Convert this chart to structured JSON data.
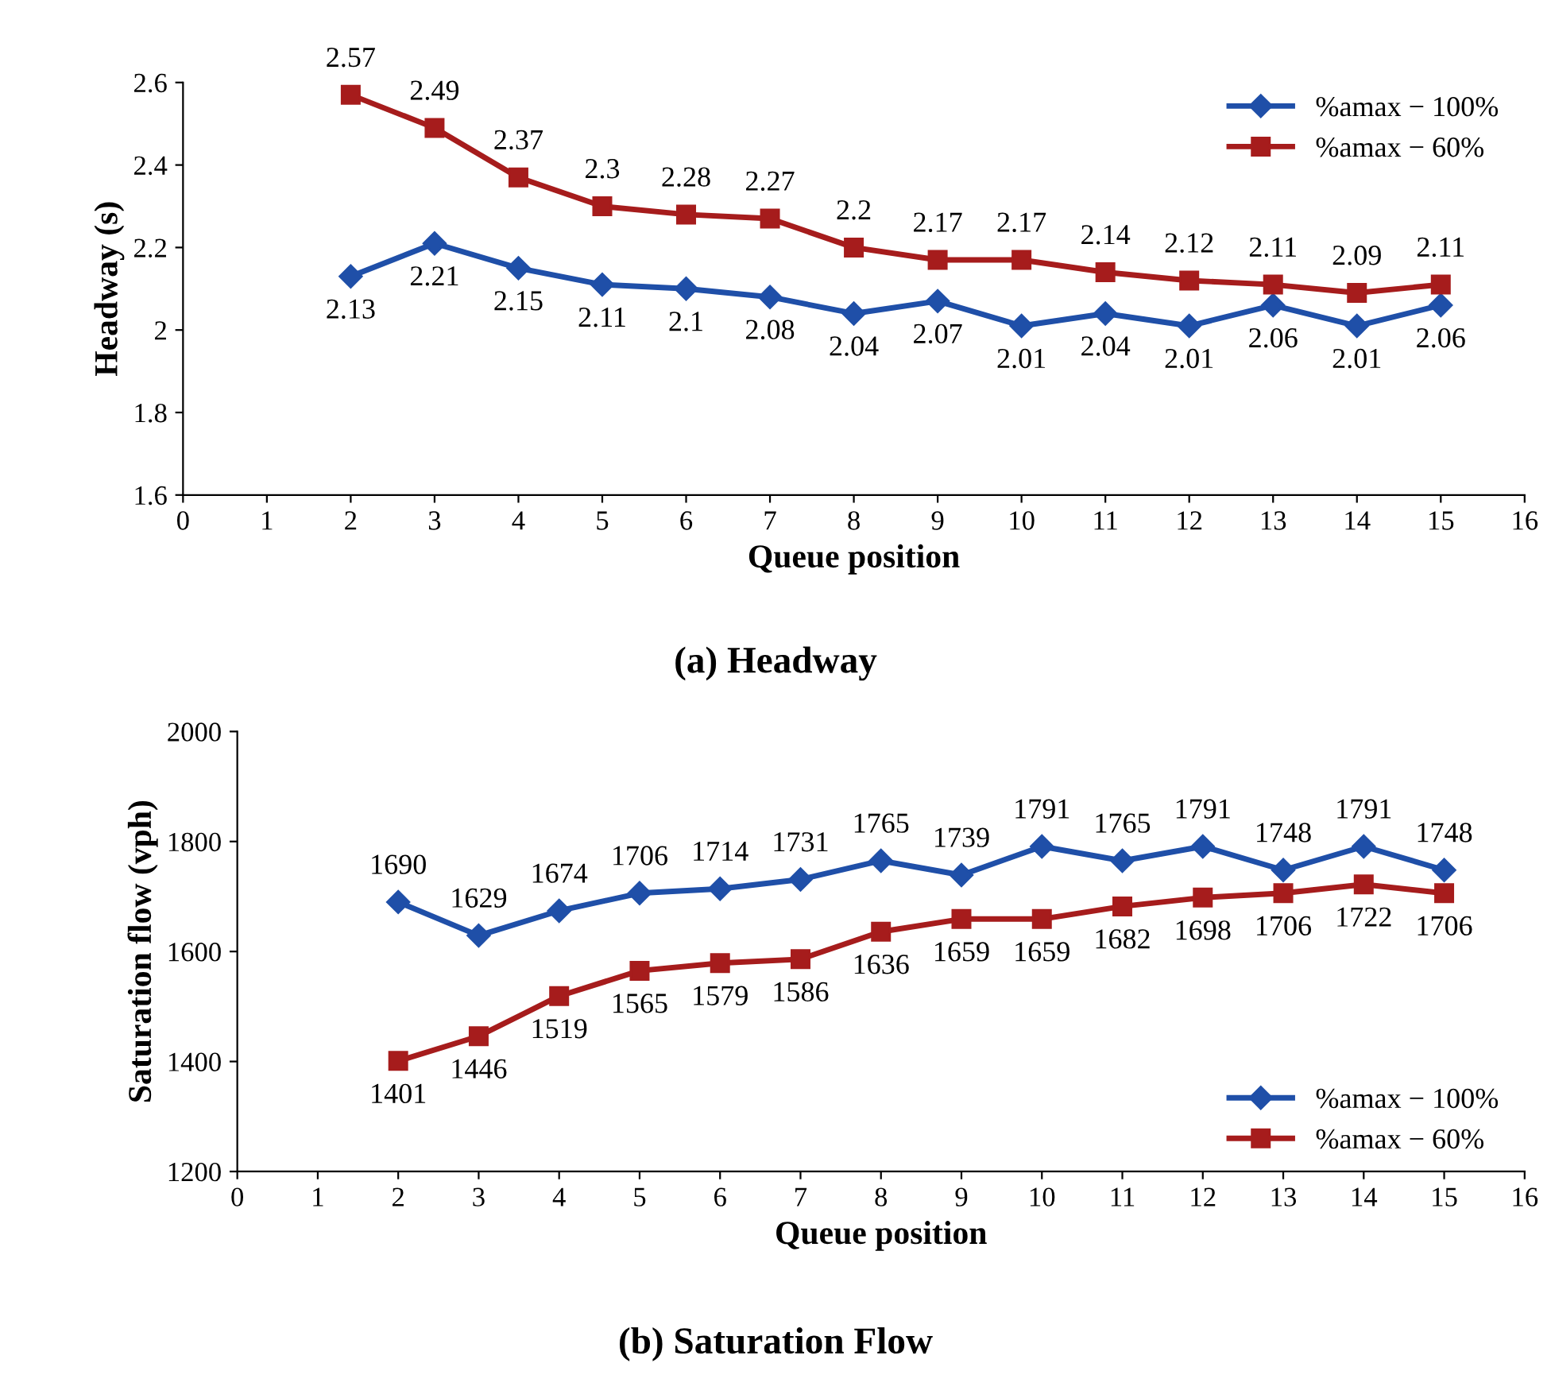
{
  "chart_data": [
    {
      "type": "line",
      "xlabel": "Queue position",
      "ylabel": "Headway (s)",
      "annotations": [
        "(a) Headway"
      ],
      "xlim": [
        0,
        16
      ],
      "xticks": [
        0,
        1,
        2,
        3,
        4,
        5,
        6,
        7,
        8,
        9,
        10,
        11,
        12,
        13,
        14,
        15,
        16
      ],
      "ylim": [
        1.6,
        2.6
      ],
      "yticks": [
        {
          "value": 1.6,
          "label": "1.6"
        },
        {
          "value": 1.8,
          "label": "1.8"
        },
        {
          "value": 2,
          "label": "2"
        },
        {
          "value": 2.2,
          "label": "2.2"
        },
        {
          "value": 2.4,
          "label": "2.4"
        },
        {
          "value": 2.6,
          "label": "2.6"
        }
      ],
      "x": [
        2,
        3,
        4,
        5,
        6,
        7,
        8,
        9,
        10,
        11,
        12,
        13,
        14,
        15
      ],
      "grid": false,
      "legend": "top right",
      "data_labels": true,
      "series": [
        {
          "name": "%amax − 100%",
          "color": "#1f4fa8",
          "marker": "diamond",
          "values": [
            2.13,
            2.21,
            2.15,
            2.11,
            2.1,
            2.08,
            2.04,
            2.07,
            2.01,
            2.04,
            2.01,
            2.06,
            2.01,
            2.06
          ]
        },
        {
          "name": "%amax − 60%",
          "color": "#a61c1c",
          "marker": "square",
          "values": [
            2.57,
            2.49,
            2.37,
            2.3,
            2.28,
            2.27,
            2.2,
            2.17,
            2.17,
            2.14,
            2.12,
            2.11,
            2.09,
            2.11
          ]
        }
      ]
    },
    {
      "type": "line",
      "xlabel": "Queue position",
      "ylabel": "Saturation flow (vph)",
      "annotations": [
        "(b) Saturation Flow"
      ],
      "xlim": [
        0,
        16
      ],
      "xticks": [
        0,
        1,
        2,
        3,
        4,
        5,
        6,
        7,
        8,
        9,
        10,
        11,
        12,
        13,
        14,
        15,
        16
      ],
      "ylim": [
        1200,
        2000
      ],
      "yticks": [
        1200,
        1400,
        1600,
        1800,
        2000
      ],
      "x": [
        2,
        3,
        4,
        5,
        6,
        7,
        8,
        9,
        10,
        11,
        12,
        13,
        14,
        15
      ],
      "grid": false,
      "legend": "bottom right",
      "data_labels": true,
      "series": [
        {
          "name": "%amax − 100%",
          "color": "#1f4fa8",
          "marker": "diamond",
          "values": [
            1690,
            1629,
            1674,
            1706,
            1714,
            1731,
            1765,
            1739,
            1791,
            1765,
            1791,
            1748,
            1791,
            1748
          ]
        },
        {
          "name": "%amax − 60%",
          "color": "#a61c1c",
          "marker": "square",
          "values": [
            1401,
            1446,
            1519,
            1565,
            1579,
            1586,
            1636,
            1659,
            1659,
            1682,
            1698,
            1706,
            1722,
            1706
          ]
        }
      ]
    }
  ]
}
